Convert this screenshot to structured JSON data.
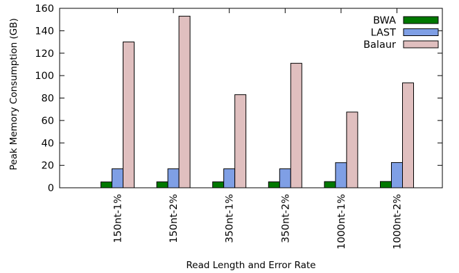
{
  "chart_data": {
    "type": "bar",
    "title": "",
    "xlabel": "Read Length and Error Rate",
    "ylabel": "Peak Memory Consumption (GB)",
    "ylim": [
      0,
      160
    ],
    "yticks": [
      0,
      20,
      40,
      60,
      80,
      100,
      120,
      140,
      160
    ],
    "grid": false,
    "legend_position": "top-right",
    "categories": [
      "150nt-1%",
      "150nt-2%",
      "350nt-1%",
      "350nt-2%",
      "1000nt-1%",
      "1000nt-2%"
    ],
    "series": [
      {
        "name": "BWA",
        "color": "#007800",
        "values": [
          5.2,
          5.3,
          5.3,
          5.3,
          5.5,
          5.6
        ]
      },
      {
        "name": "LAST",
        "color": "#7f9fe5",
        "values": [
          16.9,
          16.9,
          16.9,
          16.9,
          22.4,
          22.5
        ]
      },
      {
        "name": "Balaur",
        "color": "#e0bfbf",
        "values": [
          130,
          153,
          83,
          111,
          67.5,
          93.5
        ]
      }
    ]
  }
}
